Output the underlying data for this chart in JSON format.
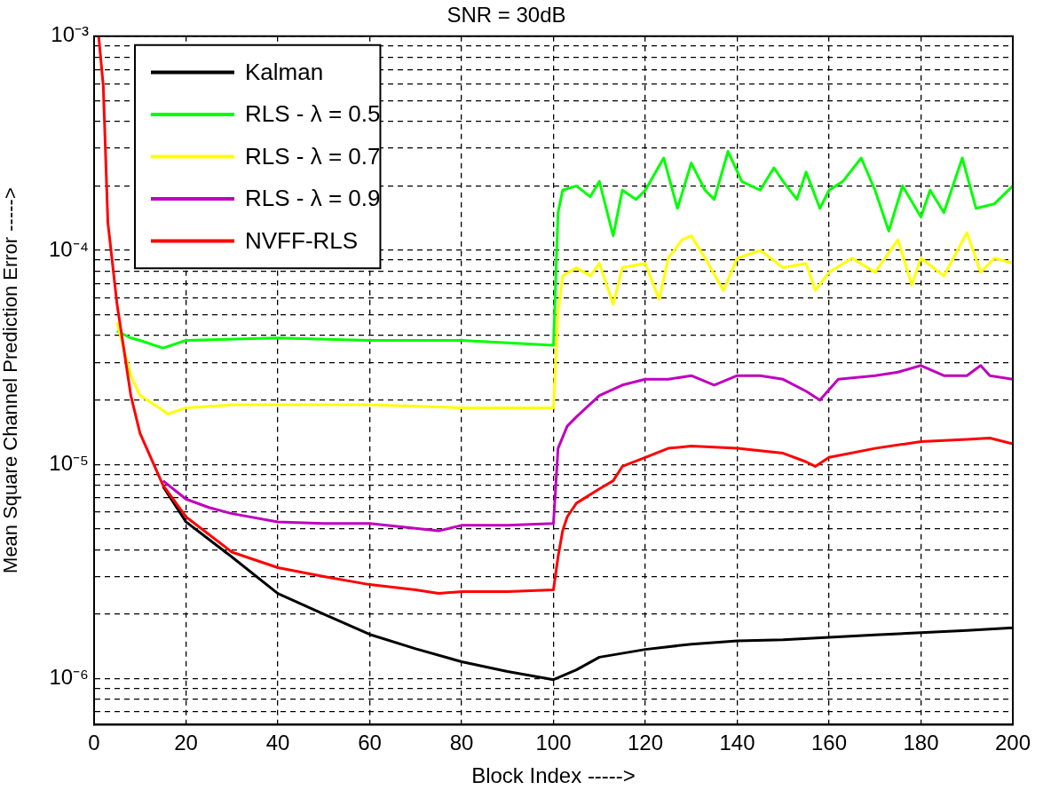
{
  "chart_data": {
    "type": "line",
    "title": "SNR = 30dB",
    "xlabel": "Block Index ----->",
    "ylabel": "Mean Square Channel Prediction Error ----->",
    "log": "y",
    "grid": true,
    "legend": "top left",
    "line_style": "solid",
    "marker": "none",
    "xlim": [
      0,
      200
    ],
    "xticks": [
      0,
      20,
      40,
      60,
      80,
      100,
      120,
      140,
      160,
      180,
      200
    ],
    "ylim": [
      6.1e-07,
      0.001
    ],
    "yticks": [
      {
        "value": 0.001,
        "label": "10⁻³"
      },
      {
        "value": 0.0009,
        "label": null
      },
      {
        "value": 0.0008,
        "label": null
      },
      {
        "value": 0.0007,
        "label": null
      },
      {
        "value": 0.0006,
        "label": null
      },
      {
        "value": 0.0005,
        "label": null
      },
      {
        "value": 0.0004,
        "label": null
      },
      {
        "value": 0.0003,
        "label": null
      },
      {
        "value": 0.0002,
        "label": null
      },
      {
        "value": 0.0001,
        "label": "10⁻⁴"
      },
      {
        "value": 9e-05,
        "label": null
      },
      {
        "value": 8e-05,
        "label": null
      },
      {
        "value": 7e-05,
        "label": null
      },
      {
        "value": 6e-05,
        "label": null
      },
      {
        "value": 5e-05,
        "label": null
      },
      {
        "value": 4e-05,
        "label": null
      },
      {
        "value": 3e-05,
        "label": null
      },
      {
        "value": 2e-05,
        "label": null
      },
      {
        "value": 1e-05,
        "label": "10⁻⁵"
      },
      {
        "value": 9e-06,
        "label": null
      },
      {
        "value": 8e-06,
        "label": null
      },
      {
        "value": 7e-06,
        "label": null
      },
      {
        "value": 6e-06,
        "label": null
      },
      {
        "value": 5e-06,
        "label": null
      },
      {
        "value": 4e-06,
        "label": null
      },
      {
        "value": 3e-06,
        "label": null
      },
      {
        "value": 2e-06,
        "label": null
      },
      {
        "value": 1e-06,
        "label": "10⁻⁶"
      },
      {
        "value": 9e-07,
        "label": null
      },
      {
        "value": 8e-07,
        "label": null
      },
      {
        "value": 7e-07,
        "label": null
      }
    ],
    "series": [
      {
        "name": "Kalman",
        "color": "#000000",
        "x": [
          15,
          20,
          30,
          40,
          50,
          60,
          70,
          80,
          90,
          100,
          105,
          110,
          120,
          130,
          140,
          150,
          160,
          170,
          180,
          190,
          200
        ],
        "values": [
          7.9e-06,
          5.4e-06,
          3.7e-06,
          2.5e-06,
          2e-06,
          1.61e-06,
          1.38e-06,
          1.2e-06,
          1.08e-06,
          9.9e-07,
          1.1e-06,
          1.26e-06,
          1.37e-06,
          1.45e-06,
          1.5e-06,
          1.52e-06,
          1.56e-06,
          1.6e-06,
          1.64e-06,
          1.68e-06,
          1.73e-06
        ]
      },
      {
        "name": "RLS - λ = 0.5",
        "color": "#00ff00",
        "x": [
          5,
          8,
          10,
          15,
          20,
          40,
          60,
          80,
          100,
          101,
          102,
          105,
          108,
          110,
          113,
          115,
          118,
          120,
          124,
          127,
          130,
          133,
          135,
          138,
          141,
          145,
          148,
          150,
          153,
          155,
          158,
          160,
          163,
          167,
          170,
          173,
          176,
          180,
          182,
          185,
          189,
          192,
          196,
          200
        ],
        "values": [
          4.2e-05,
          3.9e-05,
          3.8e-05,
          3.5e-05,
          3.8e-05,
          3.9e-05,
          3.8e-05,
          3.8e-05,
          3.6e-05,
          0.00015,
          0.000191,
          0.0002,
          0.000178,
          0.00021,
          0.000117,
          0.000191,
          0.000173,
          0.000191,
          0.00027,
          0.000157,
          0.000256,
          0.000191,
          0.000173,
          0.00029,
          0.00021,
          0.000191,
          0.000243,
          0.00021,
          0.000173,
          0.000232,
          0.000157,
          0.000191,
          0.00021,
          0.00027,
          0.000191,
          0.000123,
          0.0002,
          0.000143,
          0.000191,
          0.00015,
          0.00027,
          0.000157,
          0.000165,
          0.0002
        ]
      },
      {
        "name": "RLS - λ = 0.7",
        "color": "#ffff00",
        "x": [
          5,
          8,
          10,
          15,
          16,
          20,
          30,
          40,
          60,
          80,
          90,
          100,
          101,
          102,
          105,
          108,
          110,
          113,
          115,
          120,
          123,
          125,
          128,
          130,
          133,
          137,
          140,
          145,
          150,
          155,
          157,
          160,
          165,
          170,
          175,
          178,
          180,
          185,
          190,
          193,
          196,
          200
        ],
        "values": [
          4.6e-05,
          2.6e-05,
          2.1e-05,
          1.79e-05,
          1.72e-05,
          1.84e-05,
          1.9e-05,
          1.9e-05,
          1.9e-05,
          1.84e-05,
          1.84e-05,
          1.84e-05,
          5.1e-05,
          7.6e-05,
          8.3e-05,
          7.6e-05,
          8.7e-05,
          5.6e-05,
          8.3e-05,
          8.7e-05,
          5.9e-05,
          9.2e-05,
          0.000112,
          0.000117,
          9.2e-05,
          6.5e-05,
          9.2e-05,
          0.0001,
          8.3e-05,
          8.7e-05,
          6.5e-05,
          7.9e-05,
          9.2e-05,
          7.9e-05,
          0.000112,
          6.9e-05,
          9.2e-05,
          7.6e-05,
          0.000121,
          7.9e-05,
          9.2e-05,
          8.7e-05
        ]
      },
      {
        "name": "RLS - λ = 0.9",
        "color": "#bf00bf",
        "x": [
          15,
          20,
          25,
          30,
          40,
          50,
          60,
          75,
          80,
          90,
          100,
          101,
          103,
          105,
          110,
          115,
          120,
          125,
          130,
          135,
          140,
          145,
          150,
          155,
          158,
          162,
          170,
          175,
          180,
          185,
          190,
          193,
          195,
          200
        ],
        "values": [
          8.4e-06,
          6.9e-06,
          6.3e-06,
          5.9e-06,
          5.4e-06,
          5.3e-06,
          5.3e-06,
          4.9e-06,
          5.2e-06,
          5.2e-06,
          5.3e-06,
          1.19e-05,
          1.51e-05,
          1.67e-05,
          2.1e-05,
          2.35e-05,
          2.5e-05,
          2.5e-05,
          2.6e-05,
          2.35e-05,
          2.6e-05,
          2.6e-05,
          2.5e-05,
          2.2e-05,
          2e-05,
          2.5e-05,
          2.6e-05,
          2.7e-05,
          2.9e-05,
          2.6e-05,
          2.6e-05,
          2.9e-05,
          2.6e-05,
          2.5e-05
        ]
      },
      {
        "name": "NVFF-RLS",
        "color": "#ff0000",
        "x": [
          1,
          2,
          3,
          5,
          8,
          10,
          15,
          20,
          30,
          40,
          50,
          60,
          70,
          75,
          80,
          90,
          100,
          101,
          102,
          103,
          105,
          110,
          113,
          115,
          120,
          125,
          130,
          140,
          150,
          155,
          157,
          160,
          170,
          180,
          190,
          195,
          200
        ],
        "values": [
          0.001,
          0.000585,
          0.000135,
          5.6e-05,
          2.1e-05,
          1.4e-05,
          8e-06,
          5.7e-06,
          3.9e-06,
          3.3e-06,
          3e-06,
          2.75e-06,
          2.6e-06,
          2.5e-06,
          2.55e-06,
          2.55e-06,
          2.6e-06,
          3.7e-06,
          4.9e-06,
          5.7e-06,
          6.6e-06,
          7.7e-06,
          8.4e-06,
          9.8e-06,
          1.08e-05,
          1.19e-05,
          1.22e-05,
          1.19e-05,
          1.13e-05,
          1.03e-05,
          9.8e-06,
          1.08e-05,
          1.19e-05,
          1.28e-05,
          1.31e-05,
          1.33e-05,
          1.25e-05
        ]
      }
    ]
  }
}
